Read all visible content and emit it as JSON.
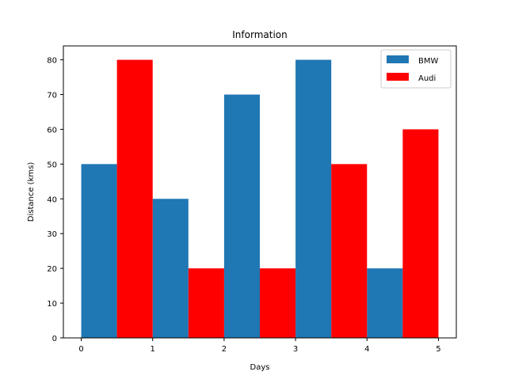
{
  "chart_data": {
    "type": "bar",
    "title": "Information",
    "xlabel": "Days",
    "ylabel": "Distance (kms)",
    "xlim": [
      -0.25,
      5.25
    ],
    "ylim": [
      0,
      84
    ],
    "xticks": [
      0,
      1,
      2,
      3,
      4,
      5
    ],
    "yticks": [
      0,
      10,
      20,
      30,
      40,
      50,
      60,
      70,
      80
    ],
    "bar_width": 0.5,
    "grid": false,
    "legend_position": "top-right",
    "series": [
      {
        "name": "BMW",
        "color": "#1f77b4",
        "x": [
          0,
          1,
          2,
          3,
          4
        ],
        "values": [
          50,
          40,
          70,
          80,
          20
        ]
      },
      {
        "name": "Audi",
        "color": "#ff0000",
        "x": [
          0.5,
          1.5,
          2.5,
          3.5,
          4.5
        ],
        "values": [
          80,
          20,
          20,
          50,
          60
        ]
      }
    ]
  }
}
